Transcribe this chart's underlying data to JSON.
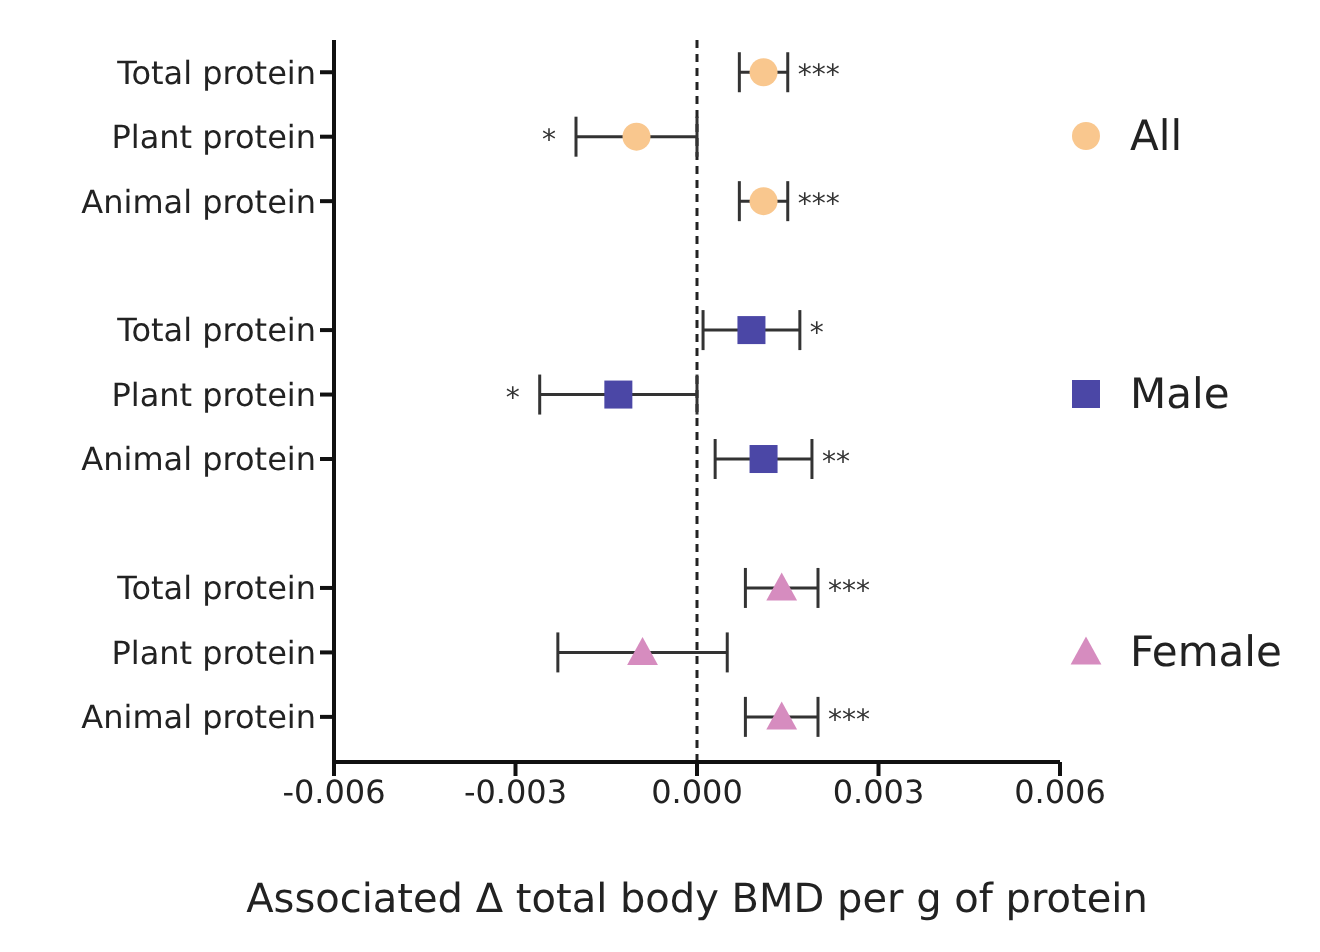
{
  "chart_data": {
    "type": "scatter",
    "orientation": "horizontal",
    "xlabel": "Associated Δ total body BMD per g of protein",
    "categories": [
      "Total protein",
      "Plant protein",
      "Animal protein",
      null,
      "Total protein",
      "Plant protein",
      "Animal protein",
      null,
      "Total protein",
      "Plant protein",
      "Animal protein"
    ],
    "series": [
      {
        "name": "All",
        "color": "#f9c78e",
        "marker": "circle",
        "values": [
          0.0011,
          -0.001,
          0.0011,
          null,
          null,
          null,
          null,
          null,
          null,
          null,
          null
        ],
        "errors": [
          [
            0.0007,
            0.0015
          ],
          [
            -0.002,
            0.0
          ],
          [
            0.0007,
            0.0015
          ],
          null,
          null,
          null,
          null,
          null,
          null,
          null,
          null
        ],
        "value_labels": [
          "***",
          "*",
          "***",
          null,
          null,
          null,
          null,
          null,
          null,
          null,
          null
        ]
      },
      {
        "name": "Male",
        "color": "#4b47a6",
        "marker": "square",
        "values": [
          null,
          null,
          null,
          null,
          0.0009,
          -0.0013,
          0.0011,
          null,
          null,
          null,
          null
        ],
        "errors": [
          null,
          null,
          null,
          null,
          [
            0.0001,
            0.0017
          ],
          [
            -0.0026,
            0.0
          ],
          [
            0.0003,
            0.0019
          ],
          null,
          null,
          null,
          null
        ],
        "value_labels": [
          null,
          null,
          null,
          null,
          "*",
          "*",
          "**",
          null,
          null,
          null,
          null
        ]
      },
      {
        "name": "Female",
        "color": "#d68cbf",
        "marker": "triangle",
        "values": [
          null,
          null,
          null,
          null,
          null,
          null,
          null,
          null,
          0.0014,
          -0.0009,
          0.0014
        ],
        "errors": [
          null,
          null,
          null,
          null,
          null,
          null,
          null,
          null,
          [
            0.0008,
            0.002
          ],
          [
            -0.0023,
            0.0005
          ],
          [
            0.0008,
            0.002
          ]
        ],
        "value_labels": [
          null,
          null,
          null,
          null,
          null,
          null,
          null,
          null,
          "***",
          null,
          "***"
        ]
      }
    ],
    "xlim": [
      -0.006,
      0.006
    ],
    "xticks": [
      {
        "value": -0.006,
        "label": "-0.006"
      },
      {
        "value": -0.003,
        "label": "-0.003"
      },
      {
        "value": 0,
        "label": "0.000"
      },
      {
        "value": 0.003,
        "label": "0.003"
      },
      {
        "value": 0.006,
        "label": "0.006"
      }
    ],
    "ref_lines": [
      {
        "axis": "x",
        "value": 0,
        "line_style": "dashed",
        "color": "#222222"
      }
    ],
    "grid": false,
    "legend": "right"
  }
}
